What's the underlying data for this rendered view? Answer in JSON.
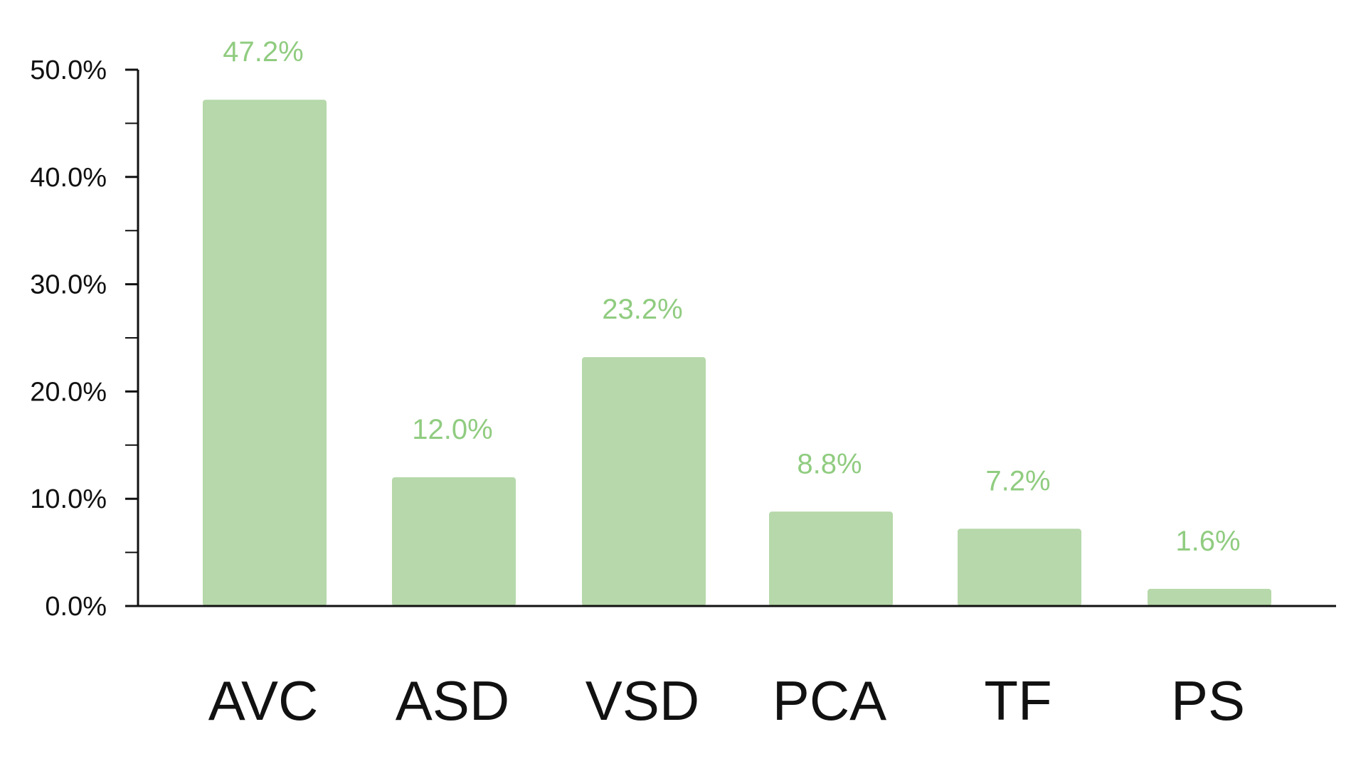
{
  "chart_data": {
    "type": "bar",
    "categories": [
      "AVC",
      "ASD",
      "VSD",
      "PCA",
      "TF",
      "PS"
    ],
    "values": [
      47.2,
      12.0,
      23.2,
      8.8,
      7.2,
      1.6
    ],
    "data_labels": [
      "47.2%",
      "12.0%",
      "23.2%",
      "8.8%",
      "7.2%",
      "1.6%"
    ],
    "ylim": [
      0,
      50
    ],
    "yticks": [
      0,
      10,
      20,
      30,
      40,
      50
    ],
    "ytick_labels": [
      "0.0%",
      "10.0%",
      "20.0%",
      "30.0%",
      "40.0%",
      "50.0%"
    ],
    "minor_ticks": [
      5,
      15,
      25,
      35,
      45
    ],
    "title": "",
    "xlabel": "",
    "ylabel": "",
    "grid": false,
    "legend": "none",
    "colors": {
      "bar": "#b6d8aa",
      "data_label": "#90cc80",
      "axis": "#111111",
      "tick_label": "#111111"
    }
  }
}
